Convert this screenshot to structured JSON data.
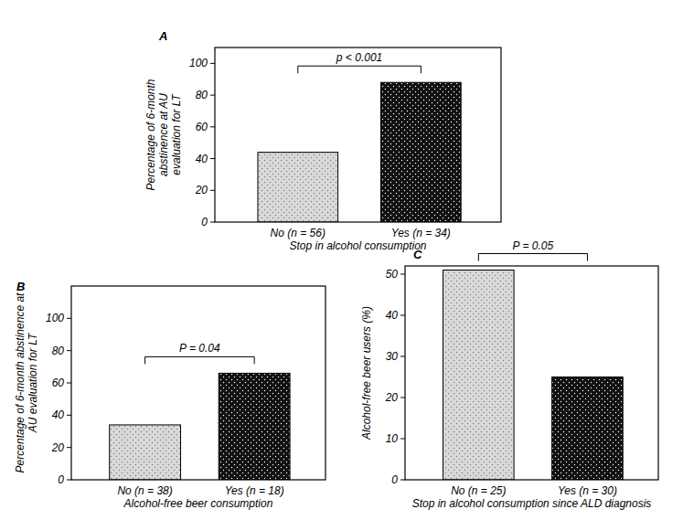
{
  "chart_data": [
    {
      "type": "bar",
      "title": "A",
      "ylabel": "Percentage of 6-month abstinence at AU evaluation for LT",
      "xlabel": "Stop in alcohol consumption",
      "categories": [
        "No (n = 56)",
        "Yes (n = 34)"
      ],
      "values": [
        44,
        88
      ],
      "colors": [
        "#d9d9d9",
        "#111111"
      ],
      "ylim": [
        0,
        110
      ],
      "yticks": [
        0,
        20,
        40,
        60,
        80,
        100
      ],
      "annotations": [
        "p < 0.001"
      ],
      "grid": false
    },
    {
      "type": "bar",
      "title": "B",
      "ylabel": "Percentage of 6-month abstinence at AU evaluation for LT",
      "xlabel": "Alcohol-free beer consumption",
      "categories": [
        "No (n = 38)",
        "Yes (n = 18)"
      ],
      "values": [
        34,
        66
      ],
      "colors": [
        "#d9d9d9",
        "#111111"
      ],
      "ylim": [
        0,
        120
      ],
      "yticks": [
        0,
        20,
        40,
        60,
        80,
        100
      ],
      "annotations": [
        "P = 0.04"
      ],
      "grid": false
    },
    {
      "type": "bar",
      "title": "C",
      "ylabel": "Alcohol-free beer users (%)",
      "xlabel": "Stop in alcohol consumption since ALD diagnosis",
      "categories": [
        "No (n = 25)",
        "Yes (n = 30)"
      ],
      "values": [
        51,
        25
      ],
      "colors": [
        "#d9d9d9",
        "#111111"
      ],
      "ylim": [
        0,
        52
      ],
      "yticks": [
        0,
        10,
        20,
        30,
        40,
        50
      ],
      "annotations": [
        "P = 0.05"
      ],
      "grid": false
    }
  ]
}
